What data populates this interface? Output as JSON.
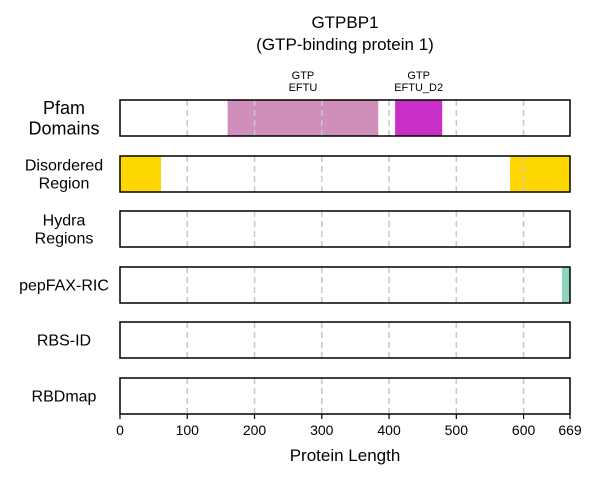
{
  "chart_data": {
    "type": "bar",
    "title": "GTPBP1",
    "subtitle": "(GTP-binding protein 1)",
    "xlabel": "Protein Length",
    "xlim": [
      0,
      669
    ],
    "x_ticks": [
      "0",
      "100",
      "200",
      "300",
      "400",
      "500",
      "600",
      "669"
    ],
    "grid": "vertical dashed at 100, 200, 300, 400, 500, 600",
    "tracks": [
      {
        "label": [
          "Pfam",
          "Domains"
        ],
        "features": [
          {
            "start": 160,
            "end": 384,
            "color": "#D08FBA",
            "label": [
              "GTP",
              "EFTU"
            ]
          },
          {
            "start": 409,
            "end": 479,
            "color": "#C72FC7",
            "label": [
              "GTP",
              "EFTU_D2"
            ]
          }
        ]
      },
      {
        "label": [
          "Disordered",
          "Region"
        ],
        "features": [
          {
            "start": 0,
            "end": 61,
            "color": "#FFD700"
          },
          {
            "start": 580,
            "end": 669,
            "color": "#FFD700"
          }
        ]
      },
      {
        "label": [
          "Hydra",
          "Regions"
        ],
        "features": []
      },
      {
        "label": [
          "pepFAX-RIC"
        ],
        "features": [
          {
            "start": 657,
            "end": 669,
            "color": "#8FD4B8"
          }
        ]
      },
      {
        "label": [
          "RBS-ID"
        ],
        "features": []
      },
      {
        "label": [
          "RBDmap"
        ],
        "features": []
      }
    ]
  }
}
